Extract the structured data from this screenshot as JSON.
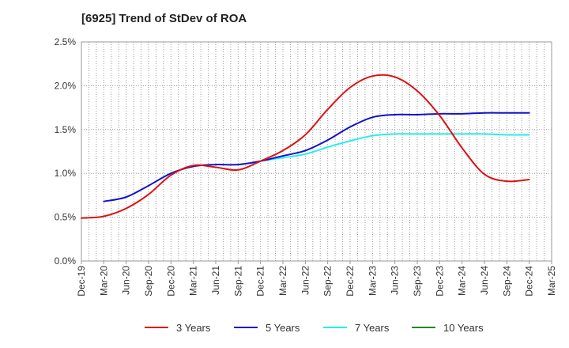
{
  "title": "[6925]  Trend of StDev of ROA",
  "chart_data": {
    "type": "line",
    "title": "[6925]  Trend of StDev of ROA",
    "xlabel": "",
    "ylabel": "",
    "x_ticks": [
      "Dec-19",
      "Mar-20",
      "Jun-20",
      "Sep-20",
      "Dec-20",
      "Mar-21",
      "Jun-21",
      "Sep-21",
      "Dec-21",
      "Mar-22",
      "Jun-22",
      "Sep-22",
      "Dec-22",
      "Mar-23",
      "Jun-23",
      "Sep-23",
      "Dec-23",
      "Mar-24",
      "Jun-24",
      "Sep-24",
      "Dec-24",
      "Mar-25"
    ],
    "y_ticks": [
      "0.0%",
      "0.5%",
      "1.0%",
      "1.5%",
      "2.0%",
      "2.5%"
    ],
    "ylim": [
      0,
      2.5
    ],
    "y_unit": "%",
    "grid": "dotted, vertical lines per month, horizontal per 0.5%",
    "legend_position": "bottom",
    "series": [
      {
        "name": "3 Years",
        "color": "#dd1111",
        "x": [
          "Dec-19",
          "Mar-20",
          "Jun-20",
          "Sep-20",
          "Dec-20",
          "Mar-21",
          "Jun-21",
          "Sep-21",
          "Dec-21",
          "Mar-22",
          "Jun-22",
          "Sep-22",
          "Dec-22",
          "Mar-23",
          "Jun-23",
          "Sep-23",
          "Dec-23",
          "Mar-24",
          "Jun-24",
          "Sep-24",
          "Dec-24"
        ],
        "values": [
          0.49,
          0.51,
          0.6,
          0.76,
          0.98,
          1.09,
          1.07,
          1.04,
          1.14,
          1.26,
          1.44,
          1.73,
          1.98,
          2.11,
          2.1,
          1.94,
          1.66,
          1.29,
          0.99,
          0.91,
          0.93
        ]
      },
      {
        "name": "5 Years",
        "color": "#1111cc",
        "x": [
          "Mar-20",
          "Jun-20",
          "Sep-20",
          "Dec-20",
          "Mar-21",
          "Jun-21",
          "Sep-21",
          "Dec-21",
          "Mar-22",
          "Jun-22",
          "Sep-22",
          "Dec-22",
          "Mar-23",
          "Jun-23",
          "Sep-23",
          "Dec-23",
          "Mar-24",
          "Jun-24",
          "Sep-24",
          "Dec-24"
        ],
        "values": [
          0.68,
          0.73,
          0.86,
          1.0,
          1.08,
          1.1,
          1.1,
          1.14,
          1.2,
          1.26,
          1.38,
          1.53,
          1.64,
          1.67,
          1.67,
          1.68,
          1.68,
          1.69,
          1.69,
          1.69
        ]
      },
      {
        "name": "7 Years",
        "color": "#22eeee",
        "x": [
          "Dec-21",
          "Mar-22",
          "Jun-22",
          "Sep-22",
          "Dec-22",
          "Mar-23",
          "Jun-23",
          "Sep-23",
          "Dec-23",
          "Mar-24",
          "Jun-24",
          "Sep-24",
          "Dec-24"
        ],
        "values": [
          1.14,
          1.18,
          1.22,
          1.3,
          1.37,
          1.43,
          1.45,
          1.45,
          1.45,
          1.45,
          1.45,
          1.44,
          1.44
        ]
      },
      {
        "name": "10 Years",
        "color": "#228822",
        "x": [],
        "values": []
      }
    ]
  }
}
